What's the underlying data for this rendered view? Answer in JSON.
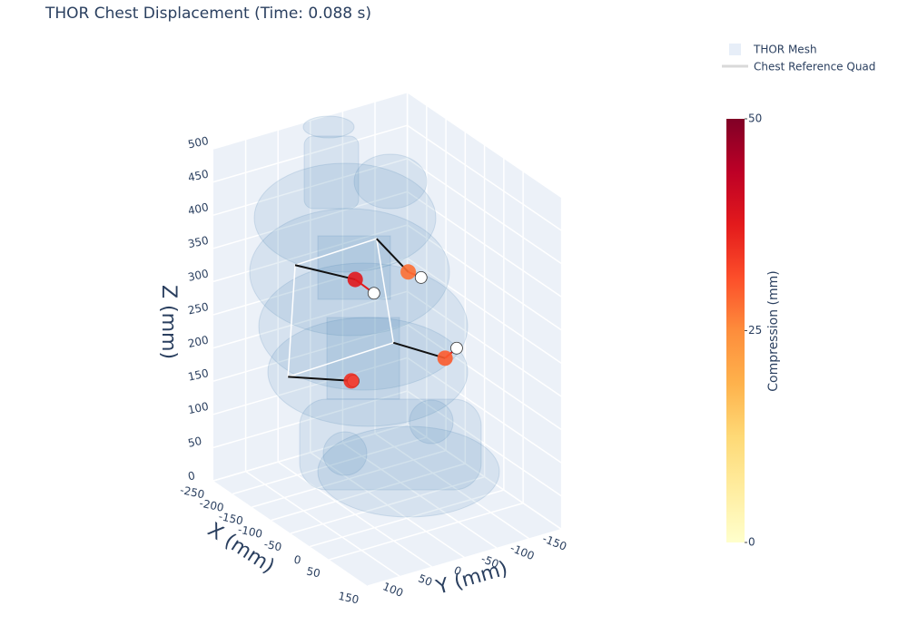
{
  "chart_data": {
    "type": "scatter3d",
    "title": "THOR Chest Displacement (Time: 0.088 s)",
    "xaxis_title": "X (mm)",
    "yaxis_title": "Y (mm)",
    "zaxis_title": "Z (mm)",
    "xlim": [
      -250,
      150
    ],
    "ylim": [
      -150,
      150
    ],
    "zlim": [
      0,
      500
    ],
    "xticks": [
      -250,
      -200,
      -150,
      -100,
      -50,
      0,
      50,
      150
    ],
    "yticks": [
      -150,
      -100,
      -50,
      0,
      50,
      100
    ],
    "zticks": [
      0,
      50,
      100,
      150,
      200,
      250,
      300,
      350,
      400,
      450,
      500
    ],
    "series": [
      {
        "name": "THOR Mesh",
        "color": "#aec7e8"
      },
      {
        "name": "Chest Reference Quad",
        "color": "#ffffff",
        "x": [
          -80,
          -80,
          -80,
          -80
        ],
        "y": [
          125,
          -1,
          -27,
          136
        ],
        "z": [
          385,
          389,
          225,
          220
        ]
      }
    ],
    "points": {
      "x": [
        -50,
        -50,
        -50,
        -50
      ],
      "y": [
        50,
        -32,
        -89,
        56
      ],
      "z": [
        354,
        342,
        196,
        203
      ],
      "values": [
        38,
        28,
        30,
        35
      ]
    },
    "reference_points": {
      "x": [
        -20,
        -20,
        -20,
        -20
      ],
      "y": [
        39,
        -34,
        -89,
        71
      ],
      "z": [
        342,
        345,
        223,
        219
      ]
    },
    "colorbar": {
      "title": "Compression (mm)",
      "lim": [
        0,
        50
      ],
      "ticks": [
        0,
        25,
        50
      ],
      "colorscale": [
        "#ffffcc",
        "#ffeda0",
        "#fed976",
        "#feb24c",
        "#fd8d3c",
        "#fc4e2a",
        "#e31a1c",
        "#bd0026",
        "#800026"
      ]
    }
  }
}
